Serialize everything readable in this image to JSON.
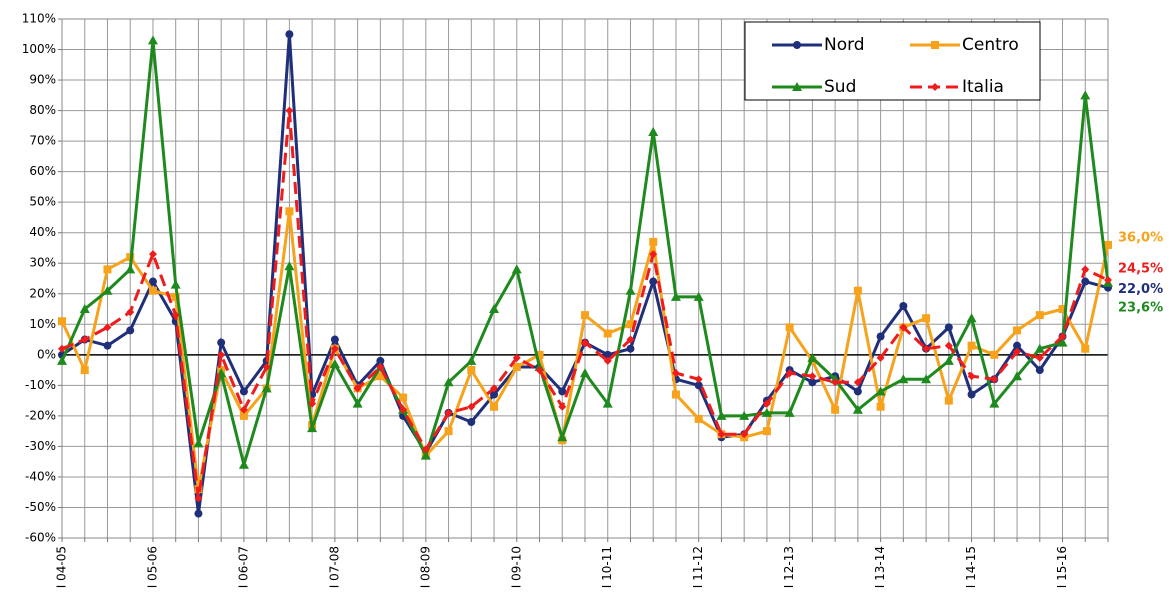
{
  "chart_data": {
    "type": "line",
    "categories": [
      "I 04-05",
      null,
      null,
      null,
      "I 05-06",
      null,
      null,
      null,
      "I 06-07",
      null,
      null,
      null,
      "I 07-08",
      null,
      null,
      null,
      "I 08-09",
      null,
      null,
      null,
      "I 09-10",
      null,
      null,
      null,
      "I 10-11",
      null,
      null,
      null,
      "I 11-12",
      null,
      null,
      null,
      "I 12-13",
      null,
      null,
      null,
      "I 13-14",
      null,
      null,
      null,
      "I 14-15",
      null,
      null,
      null,
      "I 15-16",
      null,
      null
    ],
    "series": [
      {
        "name": "Nord",
        "color": "#1f2f7a",
        "marker": "circle",
        "dashed": false,
        "values": [
          0,
          5,
          3,
          8,
          24,
          11,
          -52,
          4,
          -12,
          -2,
          105,
          -13,
          5,
          -10,
          -2,
          -20,
          -32,
          -19,
          -22,
          -13,
          -4,
          -4,
          -12,
          4,
          0,
          2,
          24,
          -8,
          -10,
          -27,
          -26,
          -15,
          -5,
          -9,
          -7,
          -12,
          6,
          16,
          2,
          9,
          -13,
          -8,
          3,
          -5,
          6,
          24,
          22
        ],
        "value_labels": [
          null,
          null,
          null,
          null,
          null,
          null,
          null,
          null,
          null,
          null,
          null,
          null,
          null,
          null,
          null,
          null,
          null,
          null,
          null,
          null,
          null,
          null,
          null,
          null,
          null,
          null,
          null,
          null,
          null,
          null,
          null,
          null,
          null,
          null,
          null,
          null,
          null,
          null,
          null,
          null,
          null,
          null,
          null,
          null,
          null,
          null,
          "22,0%"
        ]
      },
      {
        "name": "Centro",
        "color": "#f7a21b",
        "marker": "square",
        "dashed": false,
        "values": [
          11,
          -5,
          28,
          32,
          21,
          19,
          -44,
          -5,
          -20,
          -11,
          47,
          -23,
          2,
          -11,
          -7,
          -14,
          -33,
          -25,
          -5,
          -17,
          -4,
          0,
          -28,
          13,
          7,
          10,
          37,
          -13,
          -21,
          -26,
          -27,
          -25,
          9,
          -2,
          -18,
          21,
          -17,
          9,
          12,
          -15,
          3,
          0,
          8,
          13,
          15,
          2,
          36
        ],
        "value_labels": [
          null,
          null,
          null,
          null,
          null,
          null,
          null,
          null,
          null,
          null,
          null,
          null,
          null,
          null,
          null,
          null,
          null,
          null,
          null,
          null,
          null,
          null,
          null,
          null,
          null,
          null,
          null,
          null,
          null,
          null,
          null,
          null,
          null,
          null,
          null,
          null,
          null,
          null,
          null,
          null,
          null,
          null,
          null,
          null,
          null,
          null,
          "36,0%"
        ]
      },
      {
        "name": "Sud",
        "color": "#1e8a1e",
        "marker": "triangle",
        "dashed": false,
        "values": [
          -2,
          15,
          21,
          28,
          103,
          23,
          -29,
          -6,
          -36,
          -11,
          29,
          -24,
          -3,
          -16,
          -4,
          -18,
          -33,
          -9,
          -2,
          15,
          28,
          -4,
          -27,
          -6,
          -16,
          21,
          73,
          19,
          19,
          -20,
          -20,
          -19,
          -19,
          -1,
          -8,
          -18,
          -12,
          -8,
          -8,
          -2,
          12,
          -16,
          -7,
          2,
          4,
          85,
          23.6
        ],
        "value_labels": [
          null,
          null,
          null,
          null,
          null,
          null,
          null,
          null,
          null,
          null,
          null,
          null,
          null,
          null,
          null,
          null,
          null,
          null,
          null,
          null,
          null,
          null,
          null,
          null,
          null,
          null,
          null,
          null,
          null,
          null,
          null,
          null,
          null,
          null,
          null,
          null,
          null,
          null,
          null,
          null,
          null,
          null,
          null,
          null,
          null,
          null,
          "23,6%"
        ]
      },
      {
        "name": "Italia",
        "color": "#ee1c1c",
        "marker": "diamond",
        "dashed": true,
        "values": [
          2,
          5,
          9,
          14,
          33,
          13,
          -47,
          0,
          -18,
          -4,
          80,
          -16,
          2,
          -11,
          -4,
          -18,
          -31,
          -19,
          -17,
          -11,
          -1,
          -5,
          -17,
          4,
          -2,
          5,
          33,
          -6,
          -8,
          -26,
          -26,
          -16,
          -6,
          -7,
          -9,
          -9,
          -1,
          9,
          2,
          3,
          -7,
          -8,
          1,
          -1,
          6,
          28,
          24.5
        ],
        "value_labels": [
          null,
          null,
          null,
          null,
          null,
          null,
          null,
          null,
          null,
          null,
          null,
          null,
          null,
          null,
          null,
          null,
          null,
          null,
          null,
          null,
          null,
          null,
          null,
          null,
          null,
          null,
          null,
          null,
          null,
          null,
          null,
          null,
          null,
          null,
          null,
          null,
          null,
          null,
          null,
          null,
          null,
          null,
          null,
          null,
          null,
          null,
          "24,5%"
        ]
      }
    ],
    "ylim": [
      -60,
      110
    ],
    "yticks": [
      {
        "value": -60,
        "label": "-60%"
      },
      {
        "value": -50,
        "label": "-50%"
      },
      {
        "value": -40,
        "label": "-40%"
      },
      {
        "value": -30,
        "label": "-30%"
      },
      {
        "value": -20,
        "label": "-20%"
      },
      {
        "value": -10,
        "label": "-10%"
      },
      {
        "value": 0,
        "label": "0%"
      },
      {
        "value": 10,
        "label": "10%"
      },
      {
        "value": 20,
        "label": "20%"
      },
      {
        "value": 30,
        "label": "30%"
      },
      {
        "value": 40,
        "label": "40%"
      },
      {
        "value": 50,
        "label": "50%"
      },
      {
        "value": 60,
        "label": "60%"
      },
      {
        "value": 70,
        "label": "70%"
      },
      {
        "value": 80,
        "label": "80%"
      },
      {
        "value": 90,
        "label": "90%"
      },
      {
        "value": 100,
        "label": "100%"
      },
      {
        "value": 110,
        "label": "110%"
      }
    ],
    "grid": true,
    "legend": "top-right"
  }
}
